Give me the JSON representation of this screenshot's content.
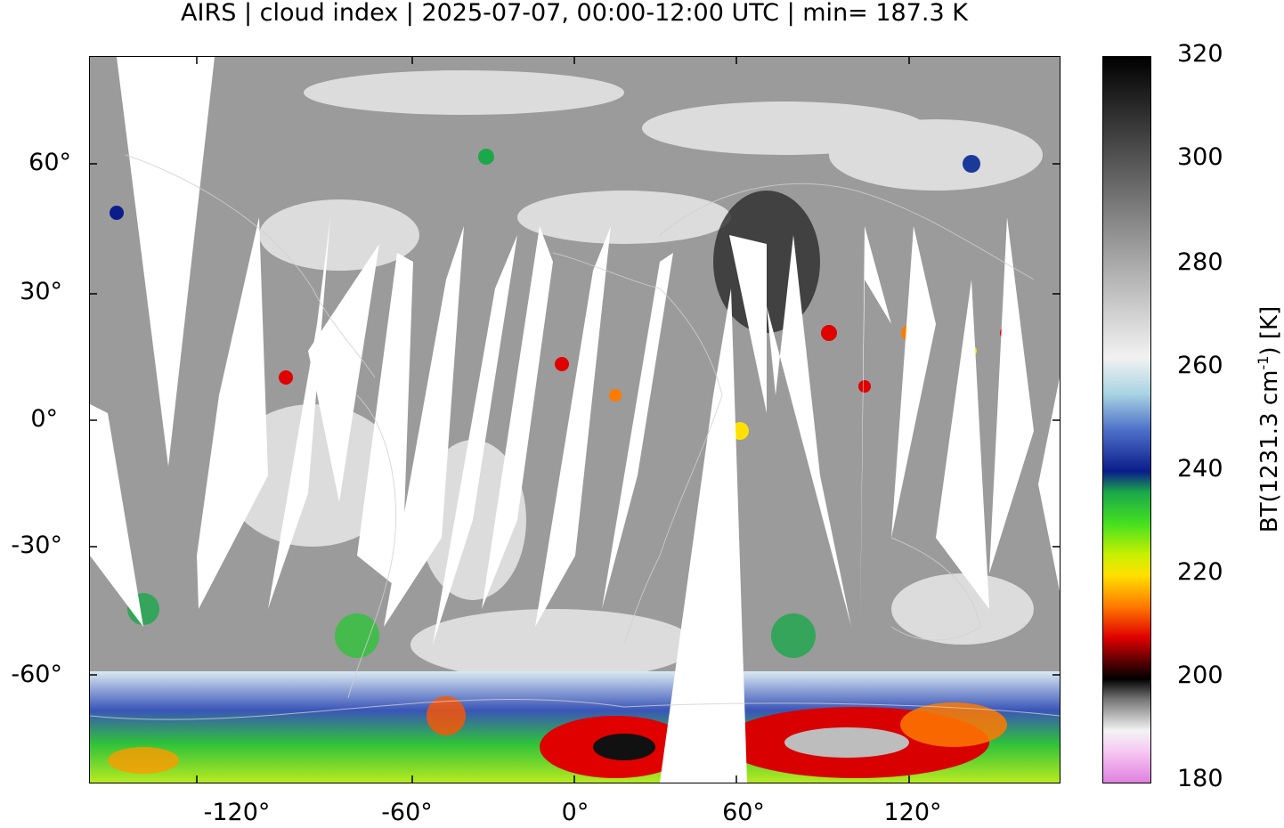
{
  "title": "AIRS | cloud index | 2025-07-07, 00:00-12:00 UTC | min= 187.3 K",
  "map": {
    "projection": "plate-carree",
    "lon_range": [
      -180,
      180
    ],
    "lat_range": [
      -90,
      90
    ],
    "x_ticks": [
      "-120°",
      "-60°",
      "0°",
      "60°",
      "120°"
    ],
    "y_ticks": [
      "60°",
      "30°",
      "0°",
      "-30°",
      "-60°"
    ],
    "background_colors": {
      "land_sea_gray": "#9a9a9a",
      "cold_cloud_white": "#f4f4f4",
      "swath_gap": "#ffffff"
    }
  },
  "colorbar": {
    "label_main": "BT(1231.3 cm",
    "label_sup": "-1",
    "label_tail": ") [K]",
    "ticks": [
      "320",
      "300",
      "280",
      "260",
      "240",
      "220",
      "200",
      "180"
    ],
    "range_K": [
      180,
      320
    ],
    "stops": [
      {
        "value": 320,
        "color": "#000000"
      },
      {
        "value": 300,
        "color": "#555555"
      },
      {
        "value": 280,
        "color": "#aaaaaa"
      },
      {
        "value": 262,
        "color": "#f2f2f2"
      },
      {
        "value": 255,
        "color": "#a8d4e2"
      },
      {
        "value": 248,
        "color": "#4e6fc8"
      },
      {
        "value": 240,
        "color": "#0a1d8a"
      },
      {
        "value": 236,
        "color": "#1aa84a"
      },
      {
        "value": 230,
        "color": "#44e020"
      },
      {
        "value": 224,
        "color": "#c8f000"
      },
      {
        "value": 220,
        "color": "#ffe000"
      },
      {
        "value": 214,
        "color": "#ff7a00"
      },
      {
        "value": 208,
        "color": "#e00000"
      },
      {
        "value": 203,
        "color": "#500000"
      },
      {
        "value": 200,
        "color": "#000000"
      },
      {
        "value": 196,
        "color": "#777777"
      },
      {
        "value": 190,
        "color": "#f4f4f4"
      },
      {
        "value": 186,
        "color": "#f6c8f2"
      },
      {
        "value": 180,
        "color": "#e080e0"
      }
    ]
  }
}
